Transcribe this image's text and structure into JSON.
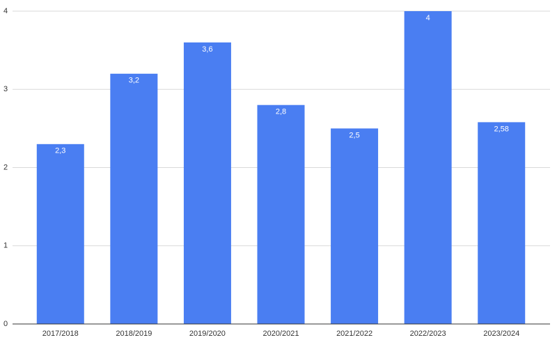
{
  "chart_data": {
    "type": "bar",
    "categories": [
      "2017/2018",
      "2018/2019",
      "2019/2020",
      "2020/2021",
      "2021/2022",
      "2022/2023",
      "2023/2024"
    ],
    "values": [
      2.3,
      3.2,
      3.6,
      2.8,
      2.5,
      4,
      2.58
    ],
    "value_labels": [
      "2,3",
      "3,2",
      "3,6",
      "2,8",
      "2,5",
      "4",
      "2,58"
    ],
    "color": "#4a7ef2",
    "ylim": [
      0,
      4
    ],
    "yticks": [
      0,
      1,
      2,
      3,
      4
    ],
    "grid": true
  }
}
